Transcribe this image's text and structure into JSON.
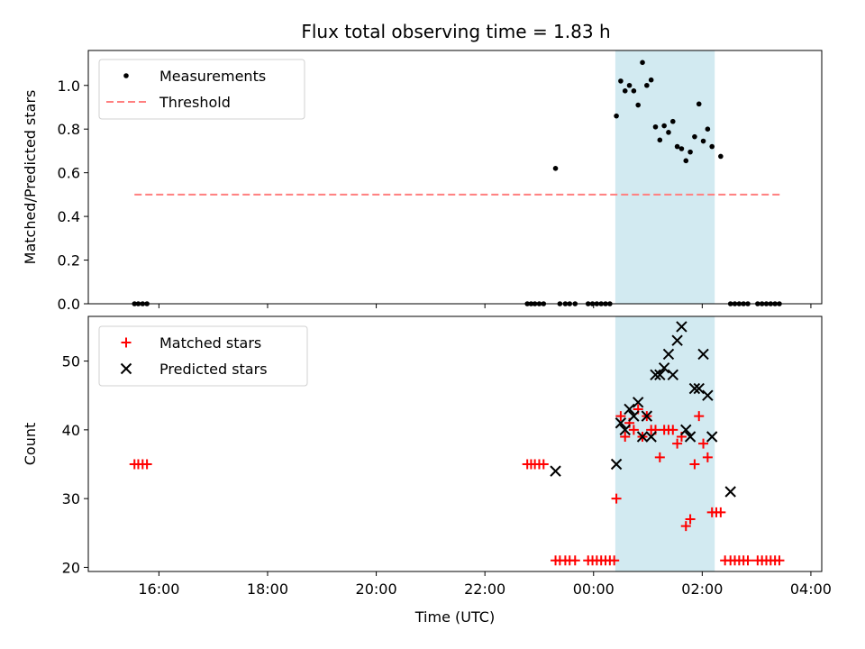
{
  "figure": {
    "title": "Flux total observing time = 1.83 h"
  },
  "chart_data": [
    {
      "type": "scatter",
      "panel": "top",
      "title": "Flux total observing time = 1.83 h",
      "xlabel": "",
      "ylabel": "Matched/Predicted stars",
      "x_unit": "hours since 15:00 UTC (day 1)",
      "xlim": [
        -0.3,
        13.2
      ],
      "ylim": [
        0.0,
        1.16
      ],
      "yticks": [
        0.0,
        0.2,
        0.4,
        0.6,
        0.8,
        1.0
      ],
      "ytick_labels": [
        "0.0",
        "0.2",
        "0.4",
        "0.6",
        "0.8",
        "1.0"
      ],
      "legend_position": "upper-left",
      "shaded_region": {
        "x0": 9.4,
        "x1": 11.23,
        "color": "#d2eaf1"
      },
      "series": [
        {
          "name": "Measurements",
          "marker": "dot",
          "color": "#000000",
          "x": [
            0.55,
            0.62,
            0.7,
            0.78,
            7.78,
            7.85,
            7.92,
            8.0,
            8.08,
            8.3,
            8.38,
            8.48,
            8.56,
            8.66,
            8.9,
            8.98,
            9.06,
            9.14,
            9.22,
            9.3,
            9.42,
            9.5,
            9.58,
            9.66,
            9.74,
            9.82,
            9.9,
            9.98,
            10.06,
            10.14,
            10.22,
            10.3,
            10.38,
            10.46,
            10.54,
            10.62,
            10.7,
            10.78,
            10.86,
            10.94,
            11.02,
            11.1,
            11.18,
            11.34,
            11.52,
            11.6,
            11.68,
            11.76,
            11.84,
            12.02,
            12.1,
            12.18,
            12.26,
            12.34,
            12.42
          ],
          "y": [
            0,
            0,
            0,
            0,
            0,
            0,
            0,
            0,
            0,
            0.62,
            0,
            0,
            0,
            0,
            0,
            0,
            0,
            0,
            0,
            0,
            0.86,
            1.02,
            0.975,
            1.0,
            0.975,
            0.91,
            1.105,
            1.0,
            1.025,
            0.81,
            0.75,
            0.815,
            0.785,
            0.835,
            0.72,
            0.71,
            0.655,
            0.695,
            0.765,
            0.915,
            0.745,
            0.8,
            0.72,
            0.675,
            0,
            0,
            0,
            0,
            0,
            0,
            0,
            0,
            0,
            0,
            0
          ]
        },
        {
          "name": "Threshold",
          "marker": "dashed-line",
          "color": "#ff7f7f",
          "x": [
            0.55,
            12.45
          ],
          "y": [
            0.5,
            0.5
          ]
        }
      ]
    },
    {
      "type": "scatter",
      "panel": "bottom",
      "xlabel": "Time (UTC)",
      "ylabel": "Count",
      "x_unit": "hours since 15:00 UTC (day 1)",
      "xlim": [
        -0.3,
        13.2
      ],
      "ylim": [
        19.4,
        56.5
      ],
      "yticks": [
        20,
        30,
        40,
        50
      ],
      "ytick_labels": [
        "20",
        "30",
        "40",
        "50"
      ],
      "xticks": [
        1,
        3,
        5,
        7,
        9,
        11,
        13
      ],
      "xtick_labels": [
        "16:00",
        "18:00",
        "20:00",
        "22:00",
        "00:00",
        "02:00",
        "04:00"
      ],
      "legend_position": "upper-left",
      "shaded_region": {
        "x0": 9.4,
        "x1": 11.23,
        "color": "#d2eaf1"
      },
      "series": [
        {
          "name": "Matched stars",
          "marker": "plus",
          "color": "#ff0000",
          "x": [
            0.55,
            0.62,
            0.7,
            0.78,
            7.78,
            7.85,
            7.92,
            8.0,
            8.08,
            8.3,
            8.38,
            8.48,
            8.56,
            8.66,
            8.9,
            8.98,
            9.06,
            9.14,
            9.22,
            9.3,
            9.38,
            9.42,
            9.5,
            9.58,
            9.66,
            9.74,
            9.82,
            9.9,
            9.98,
            10.06,
            10.14,
            10.22,
            10.3,
            10.38,
            10.46,
            10.54,
            10.62,
            10.7,
            10.78,
            10.86,
            10.94,
            11.02,
            11.1,
            11.18,
            11.26,
            11.34,
            11.42,
            11.52,
            11.6,
            11.68,
            11.76,
            11.84,
            12.02,
            12.1,
            12.18,
            12.26,
            12.34,
            12.42
          ],
          "y": [
            35,
            35,
            35,
            35,
            35,
            35,
            35,
            35,
            35,
            21,
            21,
            21,
            21,
            21,
            21,
            21,
            21,
            21,
            21,
            21,
            21,
            30,
            42,
            39,
            41,
            40,
            43,
            39,
            42,
            40,
            40,
            36,
            40,
            40,
            40,
            38,
            39,
            26,
            27,
            35,
            42,
            38,
            36,
            28,
            28,
            28,
            21,
            21,
            21,
            21,
            21,
            21,
            21,
            21,
            21,
            21,
            21,
            21
          ]
        },
        {
          "name": "Predicted stars",
          "marker": "x",
          "color": "#000000",
          "x": [
            8.3,
            9.42,
            9.5,
            9.58,
            9.66,
            9.74,
            9.82,
            9.9,
            9.98,
            10.06,
            10.14,
            10.22,
            10.3,
            10.38,
            10.46,
            10.54,
            10.62,
            10.7,
            10.78,
            10.86,
            10.94,
            11.02,
            11.1,
            11.18,
            11.52
          ],
          "y": [
            34,
            35,
            41,
            40,
            43,
            42,
            44,
            39,
            42,
            39,
            48,
            48,
            49,
            51,
            48,
            53,
            55,
            40,
            39,
            46,
            46,
            51,
            45,
            39,
            31
          ]
        }
      ]
    }
  ]
}
